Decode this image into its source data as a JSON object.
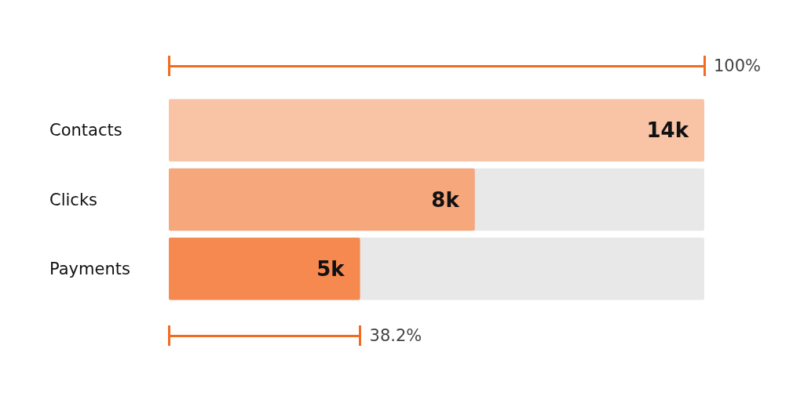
{
  "chart_data": {
    "type": "bar",
    "orientation": "horizontal",
    "categories": [
      "Contacts",
      "Clicks",
      "Payments"
    ],
    "values": [
      14,
      8,
      5
    ],
    "colors": [
      "#f9c4a6",
      "#f6a77c",
      "#f58950"
    ],
    "value_labels": [
      "14k",
      "8k",
      "5k"
    ],
    "annotations": [
      "100%",
      "38.2%"
    ]
  }
}
